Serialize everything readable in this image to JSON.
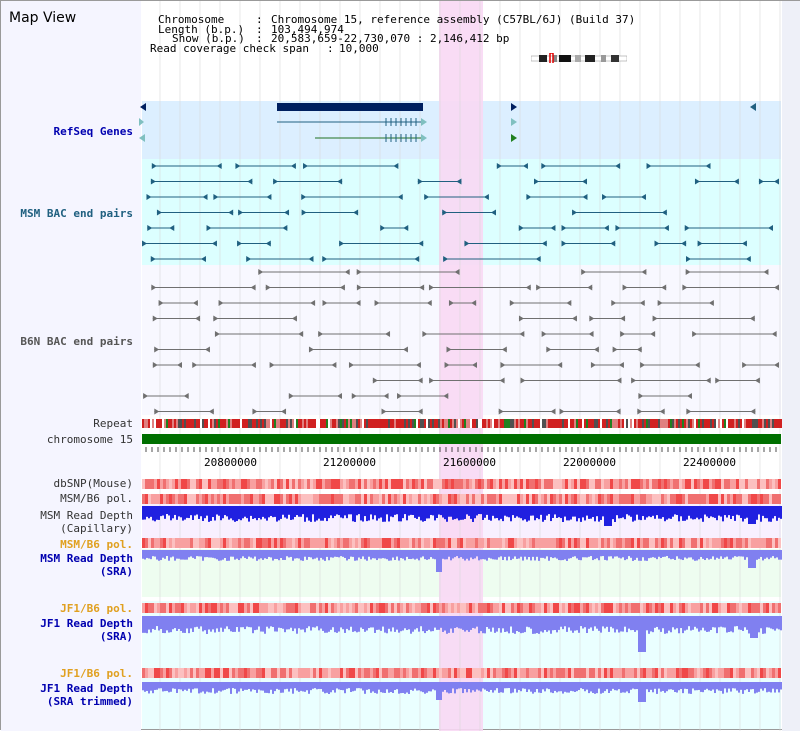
{
  "view": {
    "title": "Map View",
    "info": {
      "chromosome_key": "Chromosome",
      "chromosome_val": "Chromosome 15, reference assembly (C57BL/6J) (Build 37)",
      "length_key": "Length (b.p.)",
      "length_val": "103,494,974",
      "show_key": "Show (b.p.)",
      "show_val": "20,583,659-22,730,070 : 2,146,412 bp",
      "span_key": "Read coverage check span",
      "span_val": "10,000"
    }
  },
  "tracks": {
    "refseq": "RefSeq Genes",
    "msm_bac": "MSM BAC end pairs",
    "b6n_bac": "B6N BAC end pairs",
    "repeat": "Repeat",
    "chromosome": "chromosome 15",
    "dbsnp": "dbSNP(Mouse)",
    "msm_b6_pol_1": "MSM/B6 pol.",
    "msm_depth_cap": "MSM Read Depth\n(Capillary)",
    "msm_b6_pol_2": "MSM/B6 pol.",
    "msm_depth_sra": "MSM Read Depth\n(SRA)",
    "jf1_b6_pol_1": "JF1/B6 pol.",
    "jf1_depth_sra": "JF1 Read Depth\n(SRA)",
    "jf1_b6_pol_2": "JF1/B6 pol.",
    "jf1_depth_trim": "JF1 Read Depth\n(SRA trimmed)"
  },
  "axis": {
    "ticks": [
      "20800000",
      "21200000",
      "21600000",
      "22000000",
      "22400000"
    ]
  },
  "colors": {
    "refseq_bg": "#dcefff",
    "msm_bac_bg": "#dcffff",
    "highlight": "#f8d8f4",
    "chromosome_bar": "#007000",
    "depth_blue": "#2020e0",
    "depth_light": "#8080f0"
  }
}
